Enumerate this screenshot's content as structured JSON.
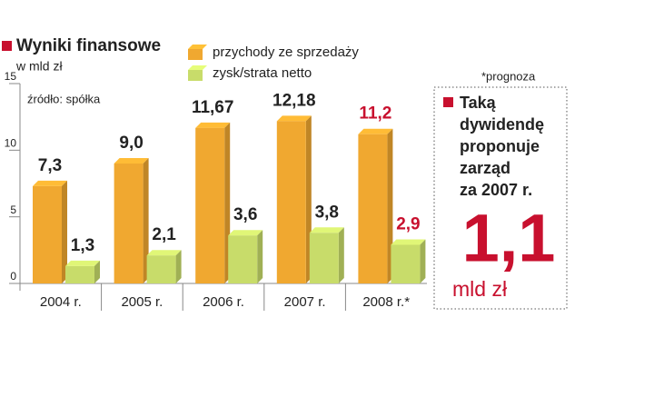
{
  "chart_data": {
    "type": "bar",
    "title": "Wyniki finansowe",
    "subtitle": "w mld zł",
    "source": "źródło: spółka",
    "note": "*prognoza",
    "categories": [
      "2004 r.",
      "2005 r.",
      "2006 r.",
      "2007 r.",
      "2008 r.*"
    ],
    "series": [
      {
        "name": "przychody ze sprzedaży",
        "color": "#f0a830",
        "values": [
          7.3,
          9.0,
          11.67,
          12.18,
          11.2
        ],
        "value_labels": [
          "7,3",
          "9,0",
          "11,67",
          "12,18",
          "11,2"
        ],
        "value_label_colors": [
          "#222222",
          "#222222",
          "#222222",
          "#222222",
          "#c8102e"
        ]
      },
      {
        "name": "zysk/strata netto",
        "color": "#c8dc6a",
        "values": [
          1.3,
          2.1,
          3.6,
          3.8,
          2.9
        ],
        "value_labels": [
          "1,3",
          "2,1",
          "3,6",
          "3,8",
          "2,9"
        ],
        "value_label_colors": [
          "#222222",
          "#222222",
          "#222222",
          "#222222",
          "#c8102e"
        ]
      }
    ],
    "ylim": [
      0,
      15
    ],
    "yticks": [
      0,
      5,
      10,
      15
    ],
    "grid": false
  },
  "side_box": {
    "lines": [
      "Taką",
      "dywidendę",
      "proponuje",
      "zarząd",
      "za 2007 r."
    ],
    "highlight": "1,1",
    "unit": "mld zł"
  }
}
